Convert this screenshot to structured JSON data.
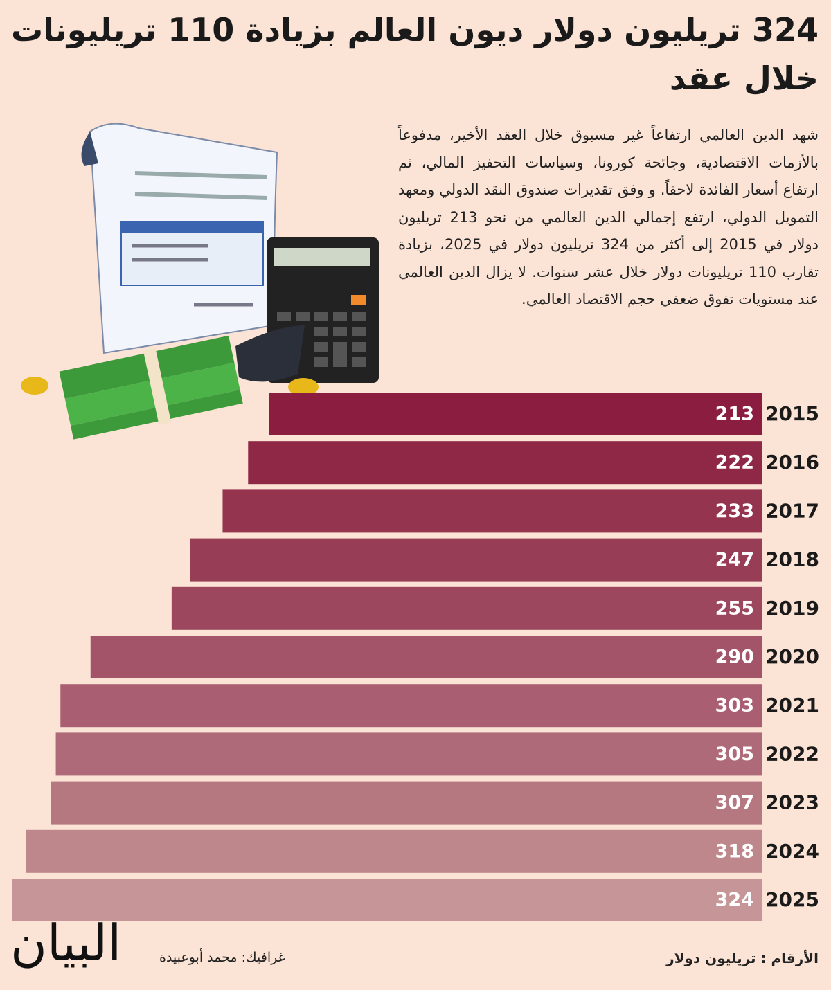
{
  "chart_data": {
    "type": "bar",
    "title": "324 تريليون دولار ديون العالم بزيادة 110 تريليونات خلال عقد",
    "description": "شهد الدين العالمي ارتفاعاً غير مسبوق خلال العقد الأخير، مدفوعاً بالأزمات الاقتصادية، وجائحة كورونا، وسياسات التحفيز المالي، ثم ارتفاع أسعار الفائدة لاحقاً. و وفق تقديرات صندوق النقد الدولي ومعهد التمويل الدولي، ارتفع إجمالي الدين العالمي من نحو 213 تريليون دولار في 2015 إلى أكثر من 324 تريليون دولار في 2025، بزيادة تقارب 110 تريليونات دولار خلال عشر سنوات. لا يزال الدين العالمي عند مستويات تفوق ضعفي حجم الاقتصاد العالمي.",
    "categories": [
      "2015",
      "2016",
      "2017",
      "2018",
      "2019",
      "2020",
      "2021",
      "2022",
      "2023",
      "2024",
      "2025"
    ],
    "values": [
      213,
      222,
      233,
      247,
      255,
      290,
      303,
      305,
      307,
      318,
      324
    ],
    "colors": [
      "#8b1e40",
      "#8f2846",
      "#94344f",
      "#983d56",
      "#9c475e",
      "#a35468",
      "#a95f71",
      "#ae6a78",
      "#b57881",
      "#bd878c",
      "#c59597"
    ],
    "unit_note": "الأرقام : تريليون دولار",
    "credit": "غرافيك: محمد أبوعبيدة",
    "logo": "البيان"
  }
}
